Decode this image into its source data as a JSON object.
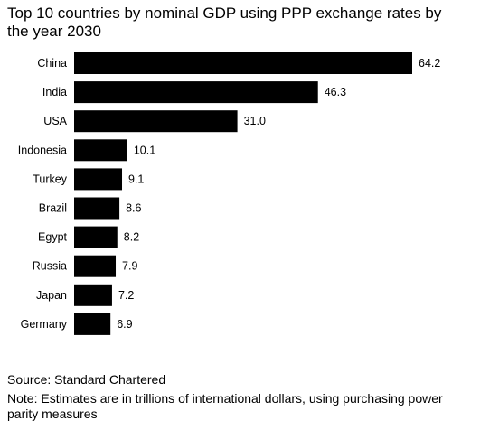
{
  "chart_data": {
    "type": "bar",
    "orientation": "horizontal",
    "title": "Top 10 countries by nominal GDP using PPP exchange rates by the year 2030",
    "categories": [
      "China",
      "India",
      "USA",
      "Indonesia",
      "Turkey",
      "Brazil",
      "Egypt",
      "Russia",
      "Japan",
      "Germany"
    ],
    "values": [
      64.2,
      46.3,
      31.0,
      10.1,
      9.1,
      8.6,
      8.2,
      7.9,
      7.2,
      6.9
    ],
    "value_labels": [
      "64.2",
      "46.3",
      "31.0",
      "10.1",
      "9.1",
      "8.6",
      "8.2",
      "7.9",
      "7.2",
      "6.9"
    ],
    "xlim": [
      0,
      64.2
    ],
    "bar_color": "#000000",
    "grid": false,
    "legend": "none"
  },
  "footer": {
    "source": "Source: Standard Chartered",
    "note": "Note: Estimates are in trillions of international dollars, using purchasing power parity measures"
  }
}
